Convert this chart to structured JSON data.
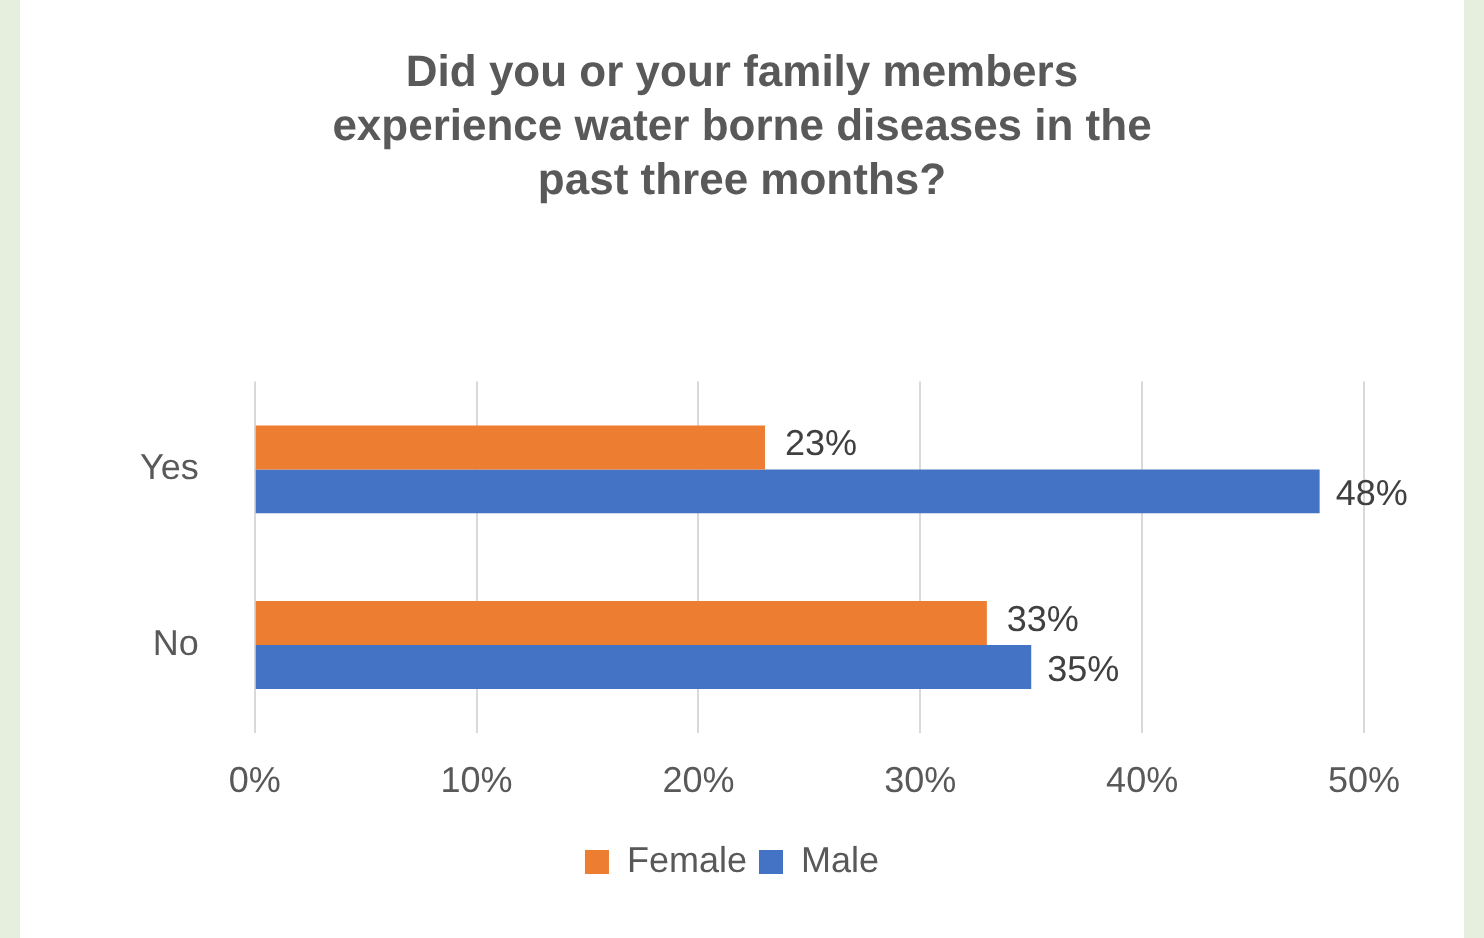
{
  "chart_data": {
    "type": "bar",
    "orientation": "horizontal",
    "title": "Did you or your family members experience water borne diseases in the past three months?",
    "categories": [
      "Yes",
      "No"
    ],
    "series": [
      {
        "name": "Female",
        "color": "#ed7d31",
        "values": [
          23,
          33
        ],
        "value_labels": [
          "23%",
          "33%"
        ]
      },
      {
        "name": "Male",
        "color": "#4472c4",
        "values": [
          48,
          35
        ],
        "value_labels": [
          "48%",
          "35%"
        ]
      }
    ],
    "xlim": [
      0,
      50
    ],
    "xticks": [
      {
        "value": 0,
        "label": "0%"
      },
      {
        "value": 10,
        "label": "10%"
      },
      {
        "value": 20,
        "label": "20%"
      },
      {
        "value": 30,
        "label": "30%"
      },
      {
        "value": 40,
        "label": "40%"
      },
      {
        "value": 50,
        "label": "50%"
      }
    ],
    "grid": "x",
    "legend": "bottom"
  }
}
